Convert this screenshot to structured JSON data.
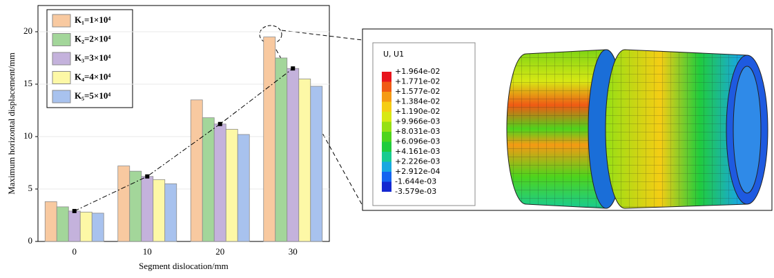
{
  "chart_data": {
    "type": "bar",
    "xlabel": "Segment dislocation/mm",
    "ylabel": "Maximum horizontal displacement/mm",
    "categories": [
      "0",
      "10",
      "20",
      "30"
    ],
    "series": [
      {
        "name": "K₁=1×10⁴",
        "color": "#f8c9a0",
        "values": [
          3.8,
          7.2,
          13.5,
          19.5
        ]
      },
      {
        "name": "K₂=2×10⁴",
        "color": "#a3d69a",
        "values": [
          3.3,
          6.7,
          11.8,
          17.5
        ]
      },
      {
        "name": "K₃=3×10⁴",
        "color": "#c4b2dc",
        "values": [
          2.9,
          6.2,
          11.2,
          16.5
        ]
      },
      {
        "name": "K₄=4×10⁴",
        "color": "#fdf8a6",
        "values": [
          2.8,
          5.9,
          10.7,
          15.5
        ]
      },
      {
        "name": "K₅=5×10⁴",
        "color": "#a8c2ee",
        "values": [
          2.7,
          5.5,
          10.2,
          14.8
        ]
      }
    ],
    "ylim": [
      0,
      22.5
    ],
    "yticks": [
      0,
      5,
      10,
      15,
      20
    ],
    "grid": true,
    "legend": "upper left"
  },
  "contour_legend": {
    "title": "U, U1",
    "labels": [
      "+1.964e-02",
      "+1.771e-02",
      "+1.577e-02",
      "+1.384e-02",
      "+1.190e-02",
      "+9.966e-03",
      "+8.031e-03",
      "+6.096e-03",
      "+4.161e-03",
      "+2.226e-03",
      "+2.912e-04",
      "-1.644e-03",
      "-3.579e-03"
    ],
    "colors": [
      "#e8141c",
      "#f05a14",
      "#f59a14",
      "#f5cd14",
      "#d8e814",
      "#96e014",
      "#4ed41c",
      "#20cc3c",
      "#18cc90",
      "#18a8e0",
      "#1464f0",
      "#1428d0"
    ]
  }
}
